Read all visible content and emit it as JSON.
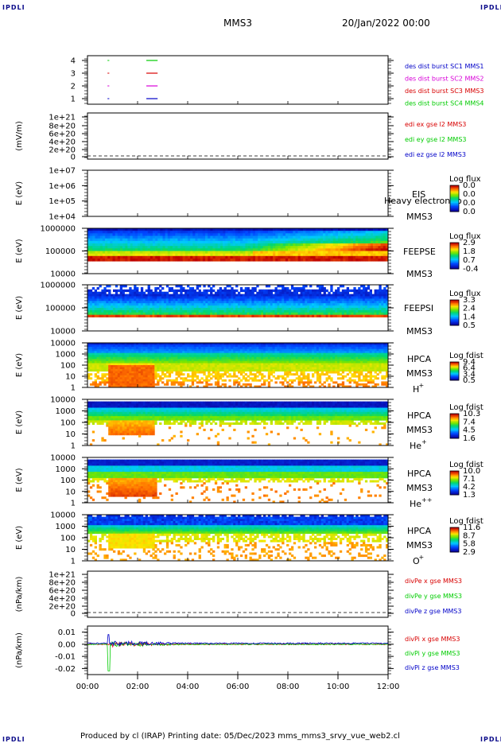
{
  "header": {
    "corner_label": "IPDLI",
    "spacecraft": "MMS3",
    "datetime": "20/Jan/2022 00:00"
  },
  "footer": {
    "text": "Produced by cl (IRAP)   Printing date: 05/Dec/2023   mms_mms3_srvy_vue_web2.cl"
  },
  "colors": {
    "black": "#000000",
    "red": "#d80000",
    "green": "#00cc00",
    "blue": "#0000c8",
    "magenta": "#d800d8"
  },
  "chart_data": [
    {
      "type": "line",
      "ylabel": "",
      "yticks": [
        "4",
        "3",
        "2",
        "1"
      ],
      "legend": [
        {
          "text": "des dist burst SC1 MMS1",
          "color": "#0000c8"
        },
        {
          "text": "des dist burst SC2 MMS2",
          "color": "#d800d8"
        },
        {
          "text": "des dist burst SC3 MMS3",
          "color": "#d80000"
        },
        {
          "text": "des dist burst SC4 MMS4",
          "color": "#00cc00"
        }
      ]
    },
    {
      "type": "line",
      "ylabel": "(mV/m)",
      "yticks": [
        "1e+21",
        "8e+20",
        "6e+20",
        "4e+20",
        "2e+20",
        "0"
      ],
      "legend": [
        {
          "text": "edi ex gse l2 MMS3",
          "color": "#d80000"
        },
        {
          "text": "edi ey gse l2 MMS3",
          "color": "#00cc00"
        },
        {
          "text": "edi ez gse l2 MMS3",
          "color": "#0000c8"
        }
      ]
    },
    {
      "type": "heatmap",
      "ylabel": "E (eV)",
      "yticks": [
        "1e+07",
        "1e+06",
        "1e+05",
        "1e+04"
      ],
      "instrument": "EIS",
      "spacecraft": "MMS3",
      "overlay_text": "Heavy electron to",
      "colorbar_title": "Log flux",
      "colorbar_ticks": [
        "0.0",
        "0.0",
        "0.0",
        "0.0"
      ]
    },
    {
      "type": "heatmap",
      "ylabel": "E (eV)",
      "yticks": [
        "1000000",
        "100000",
        "10000"
      ],
      "instrument": "FEEPSE",
      "spacecraft": "MMS3",
      "colorbar_title": "Log flux",
      "colorbar_ticks": [
        "2.9",
        "1.8",
        "0.7",
        "-0.4"
      ]
    },
    {
      "type": "heatmap",
      "ylabel": "E (eV)",
      "yticks": [
        "1000000",
        "100000",
        "10000"
      ],
      "instrument": "FEEPSI",
      "spacecraft": "MMS3",
      "colorbar_title": "Log flux",
      "colorbar_ticks": [
        "3.3",
        "2.4",
        "1.4",
        "0.5"
      ]
    },
    {
      "type": "heatmap",
      "ylabel": "E (eV)",
      "yticks": [
        "10000",
        "1000",
        "100",
        "10",
        "1"
      ],
      "instrument": "HPCA",
      "spacecraft": "MMS3",
      "species": "H",
      "species_sup": "+",
      "colorbar_title": "Log fdist",
      "colorbar_ticks": [
        "9.4",
        "6.4",
        "3.4",
        "0.5"
      ]
    },
    {
      "type": "heatmap",
      "ylabel": "E (eV)",
      "yticks": [
        "10000",
        "1000",
        "100",
        "10",
        "1"
      ],
      "instrument": "HPCA",
      "spacecraft": "MMS3",
      "species": "He",
      "species_sup": "+",
      "colorbar_title": "Log fdist",
      "colorbar_ticks": [
        "10.3",
        "7.4",
        "4.5",
        "1.6"
      ]
    },
    {
      "type": "heatmap",
      "ylabel": "E (eV)",
      "yticks": [
        "10000",
        "1000",
        "100",
        "10",
        "1"
      ],
      "instrument": "HPCA",
      "spacecraft": "MMS3",
      "species": "He",
      "species_sup": "++",
      "colorbar_title": "Log fdist",
      "colorbar_ticks": [
        "10.0",
        "7.1",
        "4.2",
        "1.3"
      ]
    },
    {
      "type": "heatmap",
      "ylabel": "E (eV)",
      "yticks": [
        "10000",
        "1000",
        "100",
        "10",
        "1"
      ],
      "instrument": "HPCA",
      "spacecraft": "MMS3",
      "species": "O",
      "species_sup": "+",
      "colorbar_title": "Log fdist",
      "colorbar_ticks": [
        "11.6",
        "8.7",
        "5.8",
        "2.9"
      ]
    },
    {
      "type": "line",
      "ylabel": "(nPa/km)",
      "yticks": [
        "1e+21",
        "8e+20",
        "6e+20",
        "4e+20",
        "2e+20",
        "0"
      ],
      "legend": [
        {
          "text": "divPe x gse MMS3",
          "color": "#d80000"
        },
        {
          "text": "divPe y gse MMS3",
          "color": "#00cc00"
        },
        {
          "text": "divPe z gse MMS3",
          "color": "#0000c8"
        }
      ]
    },
    {
      "type": "line",
      "ylabel": "(nPa/km)",
      "yticks": [
        "0.01",
        "0.00",
        "-0.01",
        "-0.02"
      ],
      "ylim": [
        -0.025,
        0.015
      ],
      "legend": [
        {
          "text": "divPi x gse MMS3",
          "color": "#d80000"
        },
        {
          "text": "divPi y gse MMS3",
          "color": "#00cc00"
        },
        {
          "text": "divPi z gse MMS3",
          "color": "#0000c8"
        }
      ],
      "spike": {
        "time_hours": 0.85,
        "min": -0.022,
        "max": 0.008
      }
    }
  ],
  "xaxis": {
    "ticks": [
      "00:00",
      "02:00",
      "04:00",
      "06:00",
      "08:00",
      "10:00",
      "12:00"
    ],
    "range_hours": [
      0,
      12
    ]
  }
}
